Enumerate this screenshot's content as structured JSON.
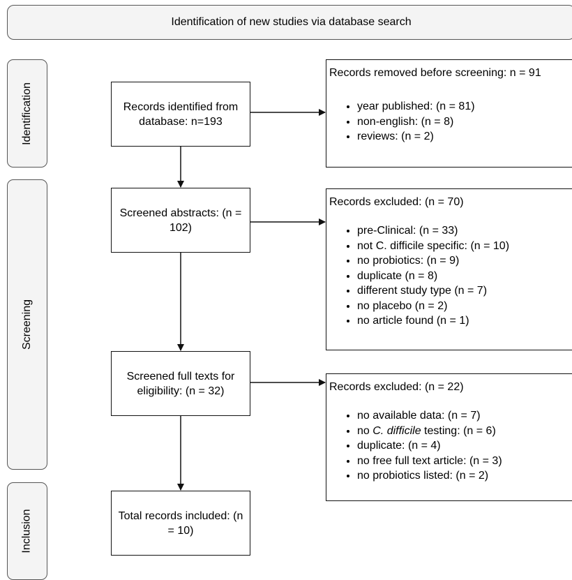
{
  "header": {
    "title": "Identification of new studies via database search"
  },
  "phases": {
    "identification": "Identification",
    "screening": "Screening",
    "inclusion": "Inclusion"
  },
  "flow": {
    "identified": "Records identified from database: n=193",
    "screened_abstracts": "Screened abstracts: (n = 102)",
    "screened_full": "Screened full texts for eligibility: (n = 32)",
    "total": "Total records included: (n = 10)"
  },
  "removed": {
    "title": "Records removed before screening: n = 91",
    "items": [
      "year published: (n = 81)",
      "non-english: (n = 8)",
      "reviews: (n = 2)"
    ]
  },
  "excluded_abstracts": {
    "title": "Records excluded: (n = 70)",
    "items": [
      "pre-Clinical: (n = 33)",
      "not C. difficile specific: (n = 10)",
      "no probiotics: (n = 9)",
      "duplicate (n = 8)",
      "different study type (n = 7)",
      "no placebo (n = 2)",
      "no article found (n = 1)"
    ]
  },
  "excluded_full": {
    "title": "Records excluded: (n = 22)",
    "items": [
      "no available data: (n = 7)",
      {
        "prefix": "no ",
        "italic": "C. difficile",
        "suffix": " testing: (n = 6)"
      },
      "duplicate: (n = 4)",
      "no free full text article: (n = 3)",
      "no probiotics listed: (n = 2)"
    ]
  }
}
